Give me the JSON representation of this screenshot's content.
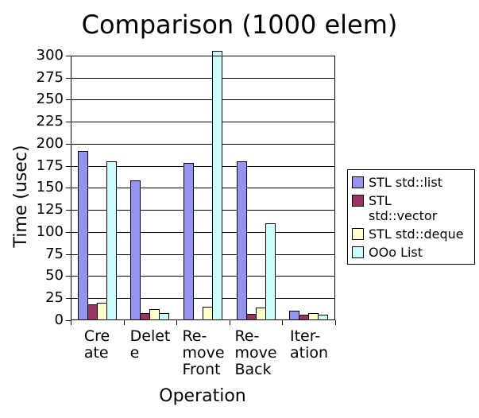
{
  "chart_data": {
    "type": "bar",
    "title": "Comparison (1000 elem)",
    "xlabel": "Operation",
    "ylabel": "Time (usec)",
    "categories": [
      "Create",
      "Delete",
      "Remove Front",
      "Remove Back",
      "Iteration"
    ],
    "category_label_lines": [
      [
        "Cre",
        "ate"
      ],
      [
        "Delet",
        "e"
      ],
      [
        "Re-",
        "move",
        "Front"
      ],
      [
        "Re-",
        "move",
        "Back"
      ],
      [
        "Iter-",
        "ation"
      ]
    ],
    "series": [
      {
        "name": "STL std::list",
        "legend_lines": [
          "STL std::list"
        ],
        "color": "#9494EE",
        "values": [
          192,
          159,
          178,
          180,
          11
        ]
      },
      {
        "name": "STL std::vector",
        "legend_lines": [
          "STL",
          "std::vector"
        ],
        "color": "#993366",
        "values": [
          18,
          8,
          0,
          7,
          6
        ]
      },
      {
        "name": "STL std::deque",
        "legend_lines": [
          "STL std::deque"
        ],
        "color": "#FFFFCC",
        "values": [
          20,
          13,
          15,
          14,
          8
        ]
      },
      {
        "name": "OOo List",
        "legend_lines": [
          "OOo List"
        ],
        "color": "#CCFFFF",
        "values": [
          180,
          8,
          305,
          110,
          6
        ]
      }
    ],
    "ylim": [
      0,
      300
    ],
    "ytick_step": 25,
    "grid": true,
    "legend_position": "right",
    "bar_outline_color": "#000000",
    "axis_color": "#000000",
    "background_color": "#FFFFFF"
  }
}
